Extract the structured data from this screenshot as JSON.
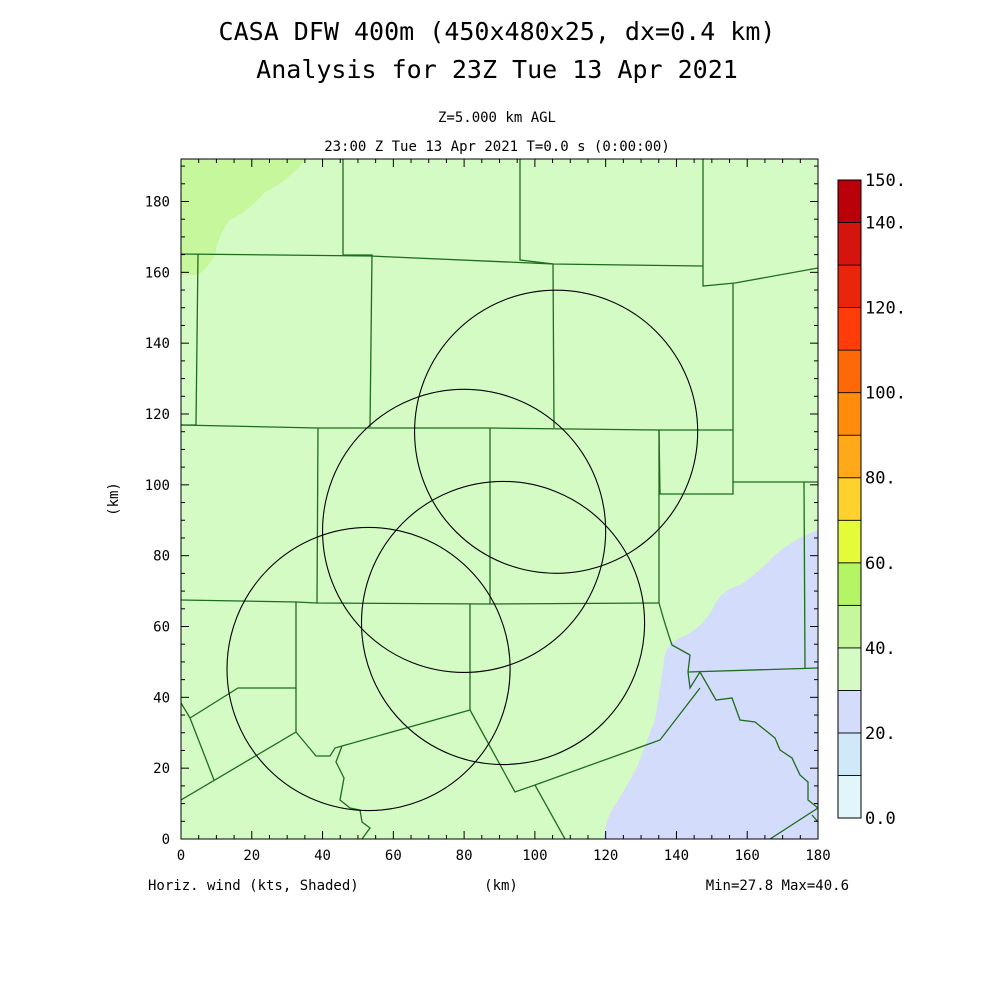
{
  "title": {
    "line1": "CASA DFW 400m (450x480x25, dx=0.4 km)",
    "line2": "Analysis for 23Z Tue 13 Apr 2021"
  },
  "subtitle": {
    "level": "Z=5.000 km AGL",
    "time": "23:00 Z Tue 13 Apr 2021   T=0.0 s (0:00:00)"
  },
  "footer": {
    "field": "Horiz. wind (kts, Shaded)",
    "xunit": "(km)",
    "minmax": "Min=27.8 Max=40.6"
  },
  "axes": {
    "xlabel": "(km)",
    "ylabel": "(km)",
    "xlim": [
      0,
      180
    ],
    "ylim": [
      0,
      192
    ],
    "x_ticks": [
      "0",
      "20",
      "40",
      "60",
      "80",
      "100",
      "120",
      "140",
      "160",
      "180"
    ],
    "y_ticks": [
      "0",
      "20",
      "40",
      "60",
      "80",
      "100",
      "120",
      "140",
      "160",
      "180"
    ]
  },
  "colorbar": {
    "levels": [
      0,
      10,
      20,
      30,
      40,
      50,
      60,
      70,
      80,
      90,
      100,
      110,
      120,
      130,
      140,
      150
    ],
    "colors": [
      "#e0f6fb",
      "#cfe9f8",
      "#d4dcfb",
      "#d4fbc4",
      "#c6f79d",
      "#b4f566",
      "#e3fc37",
      "#fed12c",
      "#ffa81a",
      "#ff8c0b",
      "#ff6806",
      "#ff3c0a",
      "#eb240c",
      "#d5150d",
      "#ba0009"
    ],
    "labels": [
      "0.0",
      "20.",
      "40.",
      "60.",
      "80.",
      "100.",
      "120.",
      "140.",
      "150."
    ]
  },
  "field_colors": {
    "base": "#d4fbc4",
    "high": "#c6f79d",
    "low": "#d4dcfb",
    "county_lines": "#1f6b1f",
    "radar_rings": "#000000"
  },
  "radar_rings_km": [
    {
      "cx": 53,
      "cy": 48,
      "r": 40
    },
    {
      "cx": 80,
      "cy": 87,
      "r": 40
    },
    {
      "cx": 91,
      "cy": 61,
      "r": 40
    },
    {
      "cx": 106,
      "cy": 115,
      "r": 40
    }
  ]
}
